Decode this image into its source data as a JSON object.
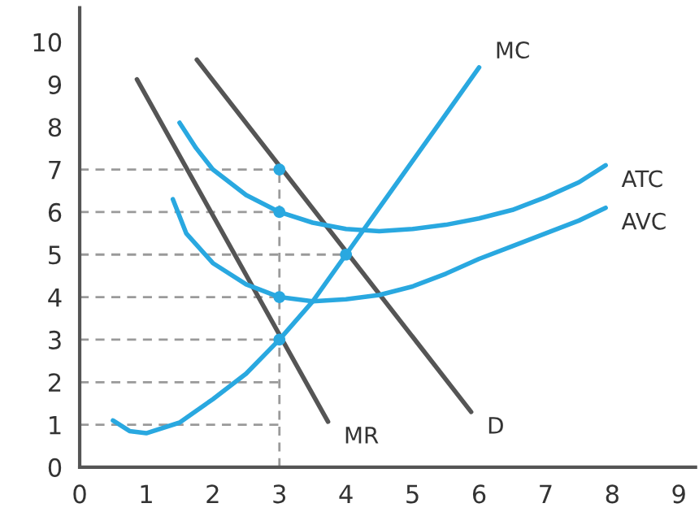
{
  "chart_data": {
    "type": "line",
    "xlim": [
      0,
      9.25
    ],
    "ylim": [
      0,
      10.8
    ],
    "xticks": [
      0,
      1,
      2,
      3,
      4,
      5,
      6,
      7,
      8,
      9
    ],
    "yticks": [
      0,
      1,
      2,
      3,
      4,
      5,
      6,
      7,
      8,
      9,
      10
    ],
    "grid": false,
    "marker": "none",
    "series": [
      {
        "type": "line",
        "line_style": "dashed",
        "color": "#9a9a9a",
        "x": [
          0,
          3
        ],
        "values": [
          1,
          1
        ]
      },
      {
        "type": "line",
        "line_style": "dashed",
        "color": "#9a9a9a",
        "x": [
          0,
          3
        ],
        "values": [
          2,
          2
        ]
      },
      {
        "type": "line",
        "line_style": "dashed",
        "color": "#9a9a9a",
        "x": [
          0,
          3
        ],
        "values": [
          3,
          3
        ]
      },
      {
        "type": "line",
        "line_style": "dashed",
        "color": "#9a9a9a",
        "x": [
          0,
          3
        ],
        "values": [
          4,
          4
        ]
      },
      {
        "type": "line",
        "line_style": "dashed",
        "color": "#9a9a9a",
        "x": [
          0,
          4
        ],
        "values": [
          5,
          5
        ]
      },
      {
        "type": "line",
        "line_style": "dashed",
        "color": "#9a9a9a",
        "x": [
          0,
          3
        ],
        "values": [
          6,
          6
        ]
      },
      {
        "type": "line",
        "line_style": "dashed",
        "color": "#9a9a9a",
        "x": [
          0,
          3
        ],
        "values": [
          7,
          7
        ]
      },
      {
        "type": "line",
        "line_style": "dashed",
        "color": "#9a9a9a",
        "x": [
          3,
          3
        ],
        "values": [
          0,
          7
        ]
      },
      {
        "line_style": "solid",
        "name": "MR",
        "color": "#555555",
        "x": [
          0.86,
          3.73
        ],
        "values": [
          9.12,
          1.07
        ]
      },
      {
        "line_style": "solid",
        "name": "D",
        "color": "#555555",
        "x": [
          1.76,
          5.88
        ],
        "values": [
          9.58,
          1.3
        ]
      },
      {
        "line_style": "solid",
        "name": "MC",
        "color": "#29a8e0",
        "x": [
          0.5,
          0.75,
          1.0,
          1.5,
          2.0,
          2.5,
          3.0,
          3.5,
          4.0,
          4.5,
          5.0,
          5.5,
          6.0
        ],
        "values": [
          1.1,
          0.85,
          0.8,
          1.05,
          1.6,
          2.2,
          3.0,
          3.9,
          5.0,
          6.1,
          7.2,
          8.3,
          9.4
        ]
      },
      {
        "line_style": "solid",
        "name": "ATC",
        "color": "#29a8e0",
        "x": [
          1.5,
          1.75,
          2.0,
          2.5,
          3.0,
          3.5,
          4.0,
          4.5,
          5.0,
          5.5,
          6.0,
          6.5,
          7.0,
          7.5,
          7.9
        ],
        "values": [
          8.1,
          7.5,
          7.0,
          6.4,
          6.0,
          5.75,
          5.6,
          5.55,
          5.6,
          5.7,
          5.85,
          6.05,
          6.35,
          6.7,
          7.1
        ]
      },
      {
        "line_style": "solid",
        "name": "AVC",
        "color": "#29a8e0",
        "x": [
          1.4,
          1.6,
          2.0,
          2.5,
          3.0,
          3.5,
          4.0,
          4.5,
          5.0,
          5.5,
          6.0,
          6.5,
          7.0,
          7.5,
          7.9
        ],
        "values": [
          6.3,
          5.5,
          4.8,
          4.3,
          4.0,
          3.9,
          3.95,
          4.05,
          4.25,
          4.55,
          4.9,
          5.2,
          5.5,
          5.8,
          6.1
        ]
      },
      {
        "type": "scatter",
        "color": "#29a8e0",
        "marker": "circle",
        "x": [
          3,
          3,
          3,
          3,
          4
        ],
        "values": [
          7,
          6,
          4,
          3,
          5
        ]
      }
    ]
  }
}
